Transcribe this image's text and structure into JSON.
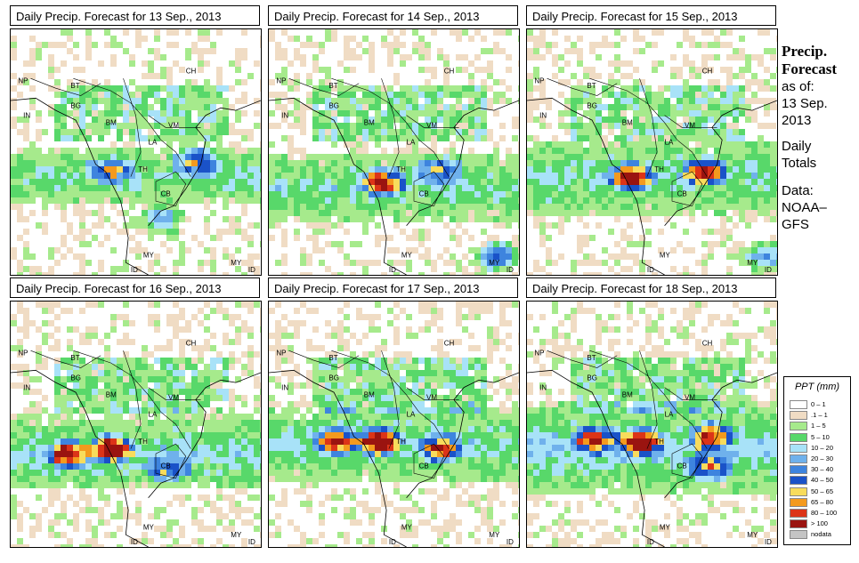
{
  "panels": [
    {
      "title": "Daily Precip. Forecast for  13 Sep., 2013",
      "seed": 13,
      "bands": [
        [
          0.58,
          0.12,
          0.45
        ]
      ],
      "hotspots": [
        [
          0.38,
          0.55,
          0.5
        ],
        [
          0.72,
          0.52,
          0.6
        ],
        [
          0.58,
          0.75,
          0.4
        ]
      ]
    },
    {
      "title": "Daily Precip. Forecast for  14 Sep., 2013",
      "seed": 14,
      "bands": [
        [
          0.62,
          0.14,
          0.5
        ]
      ],
      "hotspots": [
        [
          0.43,
          0.6,
          0.9
        ],
        [
          0.66,
          0.55,
          0.5
        ],
        [
          0.88,
          0.9,
          0.6
        ]
      ]
    },
    {
      "title": "Daily Precip. Forecast for  15 Sep., 2013",
      "seed": 15,
      "bands": [
        [
          0.58,
          0.15,
          0.55
        ]
      ],
      "hotspots": [
        [
          0.4,
          0.58,
          1.0
        ],
        [
          0.68,
          0.56,
          0.8
        ],
        [
          0.92,
          0.9,
          0.5
        ]
      ]
    },
    {
      "title": "Daily Precip. Forecast for  16 Sep., 2013",
      "seed": 16,
      "bands": [
        [
          0.6,
          0.15,
          0.6
        ]
      ],
      "hotspots": [
        [
          0.38,
          0.58,
          1.0
        ],
        [
          0.22,
          0.6,
          0.9
        ],
        [
          0.6,
          0.66,
          0.4
        ]
      ]
    },
    {
      "title": "Daily Precip. Forecast for  17 Sep., 2013",
      "seed": 17,
      "bands": [
        [
          0.56,
          0.16,
          0.55
        ]
      ],
      "hotspots": [
        [
          0.42,
          0.55,
          1.0
        ],
        [
          0.25,
          0.55,
          0.9
        ],
        [
          0.66,
          0.58,
          0.8
        ]
      ]
    },
    {
      "title": "Daily Precip. Forecast for  18 Sep., 2013",
      "seed": 18,
      "bands": [
        [
          0.58,
          0.18,
          0.7
        ]
      ],
      "hotspots": [
        [
          0.43,
          0.55,
          1.0
        ],
        [
          0.25,
          0.54,
          0.8
        ],
        [
          0.71,
          0.53,
          0.8
        ],
        [
          0.7,
          0.65,
          0.6
        ]
      ]
    }
  ],
  "country_labels": [
    "NP",
    "BT",
    "BG",
    "IN",
    "BM",
    "CH",
    "VM",
    "LA",
    "TH",
    "CB",
    "MY",
    "ID",
    "MY",
    "ID"
  ],
  "side": {
    "title_line1": "Precip.",
    "title_line2": "Forecast",
    "asof_line1": "as of:",
    "asof_line2": "13 Sep.",
    "asof_line3": "2013",
    "totals_line1": "Daily",
    "totals_line2": "Totals",
    "data_line1": "Data:",
    "data_line2": "NOAA–",
    "data_line3": "GFS"
  },
  "legend": {
    "title": "PPT (mm)",
    "items": [
      {
        "label": "0 – 1",
        "color": "#ffffff"
      },
      {
        "label": ".1 – 1",
        "color": "#f0dcc4"
      },
      {
        "label": "1 – 5",
        "color": "#a6ea8c"
      },
      {
        "label": "5 – 10",
        "color": "#58d86a"
      },
      {
        "label": "10 – 20",
        "color": "#a8e2f8"
      },
      {
        "label": "20 – 30",
        "color": "#6fb1ec"
      },
      {
        "label": "30 – 40",
        "color": "#3e84de"
      },
      {
        "label": "40 – 50",
        "color": "#1a52c8"
      },
      {
        "label": "50 – 65",
        "color": "#f8dc5c"
      },
      {
        "label": "65 – 80",
        "color": "#f49a1e"
      },
      {
        "label": "80 – 100",
        "color": "#dc3418"
      },
      {
        "label": "> 100",
        "color": "#9a1410"
      },
      {
        "label": "nodata",
        "color": "#c4c4c4"
      }
    ]
  }
}
